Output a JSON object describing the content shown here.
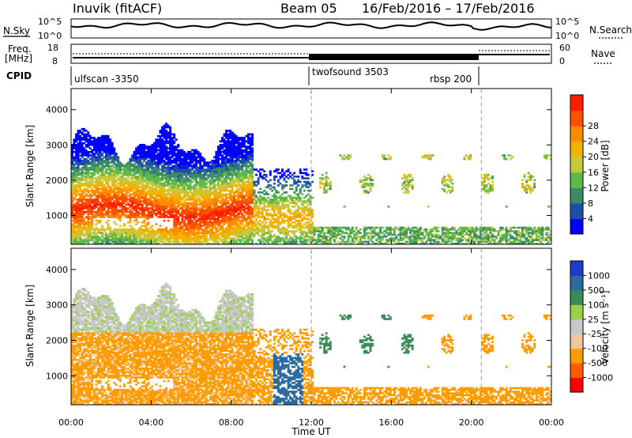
{
  "header": {
    "title": "Inuvik (fitACF)",
    "beam": "Beam 05",
    "date_range": "16/Feb/2016 – 17/Feb/2016"
  },
  "top_panels": {
    "nsky_label": "N.Sky",
    "nsearch_label": "N.Search",
    "nsky_ticks": [
      "10^5",
      "10^0"
    ],
    "freq_label_1": "Freq.",
    "freq_label_2": "[MHz]",
    "freq_ticks": [
      "18",
      "8"
    ],
    "nave_label": "Nave",
    "nave_ticks": [
      "60",
      "0"
    ],
    "cpid_label": "CPID",
    "cpid_entries": [
      {
        "name": "ulfscan -3350",
        "start_hour": 0
      },
      {
        "name": "twofsound 3503",
        "start_hour": 12
      },
      {
        "name": "rbsp 200",
        "start_hour": 20.5
      }
    ]
  },
  "colors": {
    "power": [
      "#0000ff",
      "#1e4fa8",
      "#3d8a6a",
      "#5fb84a",
      "#c8c83c",
      "#f0b400",
      "#ff8c00",
      "#ff5000",
      "#ff1e00"
    ],
    "velocity": [
      "#ff0000",
      "#ff5a00",
      "#ff9c00",
      "#f0c89c",
      "#c8c8c8",
      "#9ad04a",
      "#3c8c5a",
      "#2c6aa0",
      "#1e3cc8"
    ]
  },
  "chart_data": [
    {
      "type": "heatmap",
      "name": "power",
      "xlabel": "",
      "ylabel": "Slant Range [km]",
      "x_ticks": [
        "00:00",
        "04:00",
        "08:00",
        "12:00",
        "16:00",
        "20:00",
        "00:00"
      ],
      "xlim": [
        0,
        24
      ],
      "ylim": [
        180,
        4600
      ],
      "y_ticks": [
        1000,
        2000,
        3000,
        4000
      ],
      "colorbar_label": "Power [dB]",
      "colorbar_ticks": [
        "4",
        "8",
        "12",
        "16",
        "20",
        "24",
        "28"
      ],
      "colorbar_range": [
        0,
        32
      ]
    },
    {
      "type": "heatmap",
      "name": "velocity",
      "xlabel": "Time UT",
      "ylabel": "Slant Range [km]",
      "x_ticks": [
        "00:00",
        "04:00",
        "08:00",
        "12:00",
        "16:00",
        "20:00",
        "00:00"
      ],
      "xlim": [
        0,
        24
      ],
      "ylim": [
        180,
        4600
      ],
      "y_ticks": [
        1000,
        2000,
        3000,
        4000
      ],
      "colorbar_label": "Velocity [m s⁻¹]",
      "colorbar_ticks": [
        "1000",
        "500",
        "100",
        "25",
        "-25",
        "-100",
        "-500",
        "-1000"
      ]
    }
  ]
}
